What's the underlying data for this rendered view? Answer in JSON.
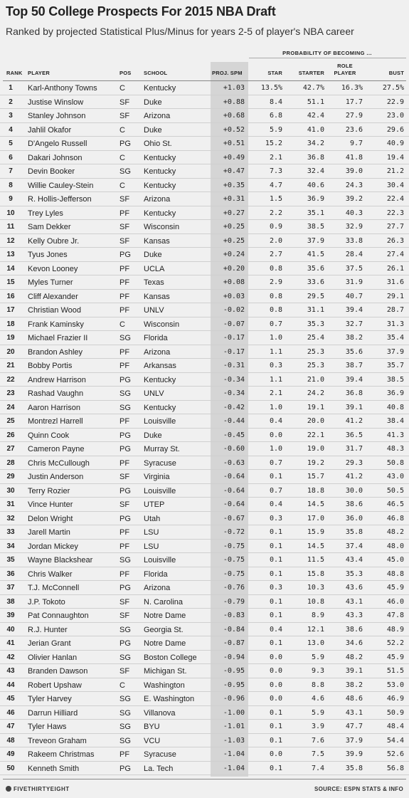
{
  "title": "Top 50 College Prospects For 2015 NBA Draft",
  "subtitle": "Ranked by projected Statistical Plus/Minus for years 2-5 of player's NBA career",
  "group_header": "PROBABILITY OF BECOMING ...",
  "columns": {
    "rank": "RANK",
    "player": "PLAYER",
    "pos": "POS",
    "school": "SCHOOL",
    "spm": "PROJ. SPM",
    "star": "STAR",
    "starter": "STARTER",
    "role_line1": "ROLE",
    "role_line2": "PLAYER",
    "bust": "BUST"
  },
  "footer": {
    "brand": "FIVETHIRTYEIGHT",
    "source": "SOURCE: ESPN STATS & INFO"
  },
  "colors": {
    "background": "#f0f0f0",
    "spm_band": "#d5d5d5"
  },
  "chart_data": {
    "type": "table",
    "rows": [
      {
        "rank": "1",
        "player": "Karl-Anthony Towns",
        "pos": "C",
        "school": "Kentucky",
        "spm": "+1.03",
        "star": "13.5%",
        "starter": "42.7%",
        "role": "16.3%",
        "bust": "27.5%"
      },
      {
        "rank": "2",
        "player": "Justise Winslow",
        "pos": "SF",
        "school": "Duke",
        "spm": "+0.88",
        "star": "8.4",
        "starter": "51.1",
        "role": "17.7",
        "bust": "22.9"
      },
      {
        "rank": "3",
        "player": "Stanley Johnson",
        "pos": "SF",
        "school": "Arizona",
        "spm": "+0.68",
        "star": "6.8",
        "starter": "42.4",
        "role": "27.9",
        "bust": "23.0"
      },
      {
        "rank": "4",
        "player": "Jahlil Okafor",
        "pos": "C",
        "school": "Duke",
        "spm": "+0.52",
        "star": "5.9",
        "starter": "41.0",
        "role": "23.6",
        "bust": "29.6"
      },
      {
        "rank": "5",
        "player": "D'Angelo Russell",
        "pos": "PG",
        "school": "Ohio St.",
        "spm": "+0.51",
        "star": "15.2",
        "starter": "34.2",
        "role": "9.7",
        "bust": "40.9"
      },
      {
        "rank": "6",
        "player": "Dakari Johnson",
        "pos": "C",
        "school": "Kentucky",
        "spm": "+0.49",
        "star": "2.1",
        "starter": "36.8",
        "role": "41.8",
        "bust": "19.4"
      },
      {
        "rank": "7",
        "player": "Devin Booker",
        "pos": "SG",
        "school": "Kentucky",
        "spm": "+0.47",
        "star": "7.3",
        "starter": "32.4",
        "role": "39.0",
        "bust": "21.2"
      },
      {
        "rank": "8",
        "player": "Willie Cauley-Stein",
        "pos": "C",
        "school": "Kentucky",
        "spm": "+0.35",
        "star": "4.7",
        "starter": "40.6",
        "role": "24.3",
        "bust": "30.4"
      },
      {
        "rank": "9",
        "player": "R. Hollis-Jefferson",
        "pos": "SF",
        "school": "Arizona",
        "spm": "+0.31",
        "star": "1.5",
        "starter": "36.9",
        "role": "39.2",
        "bust": "22.4"
      },
      {
        "rank": "10",
        "player": "Trey Lyles",
        "pos": "PF",
        "school": "Kentucky",
        "spm": "+0.27",
        "star": "2.2",
        "starter": "35.1",
        "role": "40.3",
        "bust": "22.3"
      },
      {
        "rank": "11",
        "player": "Sam Dekker",
        "pos": "SF",
        "school": "Wisconsin",
        "spm": "+0.25",
        "star": "0.9",
        "starter": "38.5",
        "role": "32.9",
        "bust": "27.7"
      },
      {
        "rank": "12",
        "player": "Kelly Oubre Jr.",
        "pos": "SF",
        "school": "Kansas",
        "spm": "+0.25",
        "star": "2.0",
        "starter": "37.9",
        "role": "33.8",
        "bust": "26.3"
      },
      {
        "rank": "13",
        "player": "Tyus Jones",
        "pos": "PG",
        "school": "Duke",
        "spm": "+0.24",
        "star": "2.7",
        "starter": "41.5",
        "role": "28.4",
        "bust": "27.4"
      },
      {
        "rank": "14",
        "player": "Kevon Looney",
        "pos": "PF",
        "school": "UCLA",
        "spm": "+0.20",
        "star": "0.8",
        "starter": "35.6",
        "role": "37.5",
        "bust": "26.1"
      },
      {
        "rank": "15",
        "player": "Myles Turner",
        "pos": "PF",
        "school": "Texas",
        "spm": "+0.08",
        "star": "2.9",
        "starter": "33.6",
        "role": "31.9",
        "bust": "31.6"
      },
      {
        "rank": "16",
        "player": "Cliff Alexander",
        "pos": "PF",
        "school": "Kansas",
        "spm": "+0.03",
        "star": "0.8",
        "starter": "29.5",
        "role": "40.7",
        "bust": "29.1"
      },
      {
        "rank": "17",
        "player": "Christian Wood",
        "pos": "PF",
        "school": "UNLV",
        "spm": "-0.02",
        "star": "0.8",
        "starter": "31.1",
        "role": "39.4",
        "bust": "28.7"
      },
      {
        "rank": "18",
        "player": "Frank Kaminsky",
        "pos": "C",
        "school": "Wisconsin",
        "spm": "-0.07",
        "star": "0.7",
        "starter": "35.3",
        "role": "32.7",
        "bust": "31.3"
      },
      {
        "rank": "19",
        "player": "Michael Frazier II",
        "pos": "SG",
        "school": "Florida",
        "spm": "-0.17",
        "star": "1.0",
        "starter": "25.4",
        "role": "38.2",
        "bust": "35.4"
      },
      {
        "rank": "20",
        "player": "Brandon Ashley",
        "pos": "PF",
        "school": "Arizona",
        "spm": "-0.17",
        "star": "1.1",
        "starter": "25.3",
        "role": "35.6",
        "bust": "37.9"
      },
      {
        "rank": "21",
        "player": "Bobby Portis",
        "pos": "PF",
        "school": "Arkansas",
        "spm": "-0.31",
        "star": "0.3",
        "starter": "25.3",
        "role": "38.7",
        "bust": "35.7"
      },
      {
        "rank": "22",
        "player": "Andrew Harrison",
        "pos": "PG",
        "school": "Kentucky",
        "spm": "-0.34",
        "star": "1.1",
        "starter": "21.0",
        "role": "39.4",
        "bust": "38.5"
      },
      {
        "rank": "23",
        "player": "Rashad Vaughn",
        "pos": "SG",
        "school": "UNLV",
        "spm": "-0.34",
        "star": "2.1",
        "starter": "24.2",
        "role": "36.8",
        "bust": "36.9"
      },
      {
        "rank": "24",
        "player": "Aaron Harrison",
        "pos": "SG",
        "school": "Kentucky",
        "spm": "-0.42",
        "star": "1.0",
        "starter": "19.1",
        "role": "39.1",
        "bust": "40.8"
      },
      {
        "rank": "25",
        "player": "Montrezl Harrell",
        "pos": "PF",
        "school": "Louisville",
        "spm": "-0.44",
        "star": "0.4",
        "starter": "20.0",
        "role": "41.2",
        "bust": "38.4"
      },
      {
        "rank": "26",
        "player": "Quinn Cook",
        "pos": "PG",
        "school": "Duke",
        "spm": "-0.45",
        "star": "0.0",
        "starter": "22.1",
        "role": "36.5",
        "bust": "41.3"
      },
      {
        "rank": "27",
        "player": "Cameron Payne",
        "pos": "PG",
        "school": "Murray St.",
        "spm": "-0.60",
        "star": "1.0",
        "starter": "19.0",
        "role": "31.7",
        "bust": "48.3"
      },
      {
        "rank": "28",
        "player": "Chris McCullough",
        "pos": "PF",
        "school": "Syracuse",
        "spm": "-0.63",
        "star": "0.7",
        "starter": "19.2",
        "role": "29.3",
        "bust": "50.8"
      },
      {
        "rank": "29",
        "player": "Justin Anderson",
        "pos": "SF",
        "school": "Virginia",
        "spm": "-0.64",
        "star": "0.1",
        "starter": "15.7",
        "role": "41.2",
        "bust": "43.0"
      },
      {
        "rank": "30",
        "player": "Terry Rozier",
        "pos": "PG",
        "school": "Louisville",
        "spm": "-0.64",
        "star": "0.7",
        "starter": "18.8",
        "role": "30.0",
        "bust": "50.5"
      },
      {
        "rank": "31",
        "player": "Vince Hunter",
        "pos": "SF",
        "school": "UTEP",
        "spm": "-0.64",
        "star": "0.4",
        "starter": "14.5",
        "role": "38.6",
        "bust": "46.5"
      },
      {
        "rank": "32",
        "player": "Delon Wright",
        "pos": "PG",
        "school": "Utah",
        "spm": "-0.67",
        "star": "0.3",
        "starter": "17.0",
        "role": "36.0",
        "bust": "46.8"
      },
      {
        "rank": "33",
        "player": "Jarell Martin",
        "pos": "PF",
        "school": "LSU",
        "spm": "-0.72",
        "star": "0.1",
        "starter": "15.9",
        "role": "35.8",
        "bust": "48.2"
      },
      {
        "rank": "34",
        "player": "Jordan Mickey",
        "pos": "PF",
        "school": "LSU",
        "spm": "-0.75",
        "star": "0.1",
        "starter": "14.5",
        "role": "37.4",
        "bust": "48.0"
      },
      {
        "rank": "35",
        "player": "Wayne Blackshear",
        "pos": "SG",
        "school": "Louisville",
        "spm": "-0.75",
        "star": "0.1",
        "starter": "11.5",
        "role": "43.4",
        "bust": "45.0"
      },
      {
        "rank": "36",
        "player": "Chris Walker",
        "pos": "PF",
        "school": "Florida",
        "spm": "-0.75",
        "star": "0.1",
        "starter": "15.8",
        "role": "35.3",
        "bust": "48.8"
      },
      {
        "rank": "37",
        "player": "T.J. McConnell",
        "pos": "PG",
        "school": "Arizona",
        "spm": "-0.76",
        "star": "0.3",
        "starter": "10.3",
        "role": "43.6",
        "bust": "45.9"
      },
      {
        "rank": "38",
        "player": "J.P. Tokoto",
        "pos": "SF",
        "school": "N. Carolina",
        "spm": "-0.79",
        "star": "0.1",
        "starter": "10.8",
        "role": "43.1",
        "bust": "46.0"
      },
      {
        "rank": "39",
        "player": "Pat Connaughton",
        "pos": "SF",
        "school": "Notre Dame",
        "spm": "-0.83",
        "star": "0.1",
        "starter": "8.9",
        "role": "43.3",
        "bust": "47.8"
      },
      {
        "rank": "40",
        "player": "R.J. Hunter",
        "pos": "SG",
        "school": "Georgia St.",
        "spm": "-0.84",
        "star": "0.4",
        "starter": "12.1",
        "role": "38.6",
        "bust": "48.9"
      },
      {
        "rank": "41",
        "player": "Jerian Grant",
        "pos": "PG",
        "school": "Notre Dame",
        "spm": "-0.87",
        "star": "0.1",
        "starter": "13.0",
        "role": "34.6",
        "bust": "52.2"
      },
      {
        "rank": "42",
        "player": "Olivier Hanlan",
        "pos": "SG",
        "school": "Boston College",
        "spm": "-0.94",
        "star": "0.0",
        "starter": "5.9",
        "role": "48.2",
        "bust": "45.9"
      },
      {
        "rank": "43",
        "player": "Branden Dawson",
        "pos": "SF",
        "school": "Michigan St.",
        "spm": "-0.95",
        "star": "0.0",
        "starter": "9.3",
        "role": "39.1",
        "bust": "51.5"
      },
      {
        "rank": "44",
        "player": "Robert Upshaw",
        "pos": "C",
        "school": "Washington",
        "spm": "-0.95",
        "star": "0.0",
        "starter": "8.8",
        "role": "38.2",
        "bust": "53.0"
      },
      {
        "rank": "45",
        "player": "Tyler Harvey",
        "pos": "SG",
        "school": "E. Washington",
        "spm": "-0.96",
        "star": "0.0",
        "starter": "4.6",
        "role": "48.6",
        "bust": "46.9"
      },
      {
        "rank": "46",
        "player": "Darrun Hilliard",
        "pos": "SG",
        "school": "Villanova",
        "spm": "-1.00",
        "star": "0.1",
        "starter": "5.9",
        "role": "43.1",
        "bust": "50.9"
      },
      {
        "rank": "47",
        "player": "Tyler Haws",
        "pos": "SG",
        "school": "BYU",
        "spm": "-1.01",
        "star": "0.1",
        "starter": "3.9",
        "role": "47.7",
        "bust": "48.4"
      },
      {
        "rank": "48",
        "player": "Treveon Graham",
        "pos": "SG",
        "school": "VCU",
        "spm": "-1.03",
        "star": "0.1",
        "starter": "7.6",
        "role": "37.9",
        "bust": "54.4"
      },
      {
        "rank": "49",
        "player": "Rakeem Christmas",
        "pos": "PF",
        "school": "Syracuse",
        "spm": "-1.04",
        "star": "0.0",
        "starter": "7.5",
        "role": "39.9",
        "bust": "52.6"
      },
      {
        "rank": "50",
        "player": "Kenneth Smith",
        "pos": "PG",
        "school": "La. Tech",
        "spm": "-1.04",
        "star": "0.1",
        "starter": "7.4",
        "role": "35.8",
        "bust": "56.8"
      }
    ]
  }
}
